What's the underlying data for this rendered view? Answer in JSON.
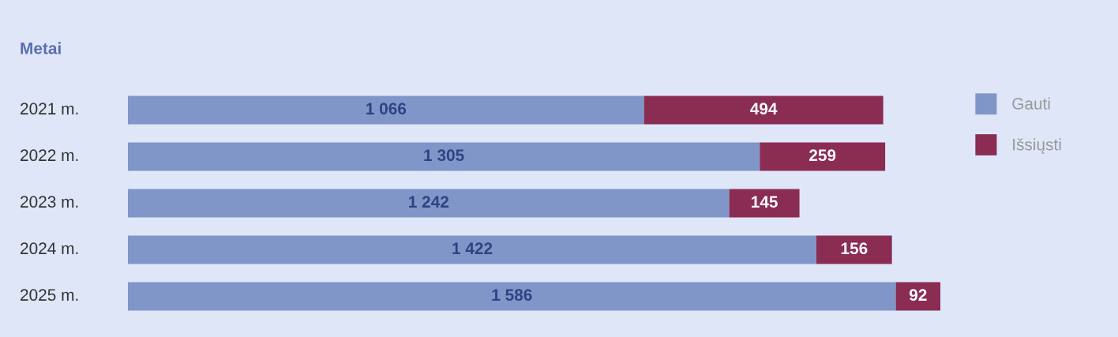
{
  "chart_data": {
    "type": "bar",
    "orientation": "horizontal",
    "stacked": true,
    "title": "Metai",
    "categories": [
      "2021 m.",
      "2022 m.",
      "2023 m.",
      "2024 m.",
      "2025 m."
    ],
    "series": [
      {
        "name": "Gauti",
        "color": "#8096c9",
        "values": [
          1066,
          1305,
          1242,
          1422,
          1586
        ],
        "value_labels": [
          "1 066",
          "1 305",
          "1 242",
          "1 422",
          "1 586"
        ]
      },
      {
        "name": "Išsiųsti",
        "color": "#8b2c52",
        "values": [
          494,
          259,
          145,
          156,
          92
        ],
        "value_labels": [
          "494",
          "259",
          "145",
          "156",
          "92"
        ]
      }
    ],
    "legend": "right"
  }
}
